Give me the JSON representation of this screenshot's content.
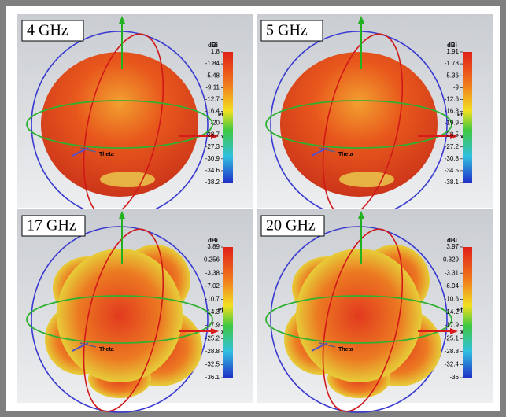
{
  "panels": [
    {
      "label": "4 GHz",
      "unit": "dBi",
      "scale": [
        "1.8",
        "-1.84",
        "-5.48",
        "-9.11",
        "-12.7",
        "-16.4",
        "-20",
        "-23.7",
        "-27.3",
        "-30.9",
        "-34.6",
        "-38.2"
      ],
      "axes": {
        "phi": "Phi",
        "theta": "Theta",
        "x": "x"
      }
    },
    {
      "label": "5 GHz",
      "unit": "dBi",
      "scale": [
        "1.91",
        "-1.73",
        "-5.36",
        "-9",
        "-12.6",
        "-16.3",
        "-19.9",
        "-23.5",
        "-27.2",
        "-30.8",
        "-34.5",
        "-38.1"
      ],
      "axes": {
        "phi": "Phi",
        "theta": "Theta",
        "x": "x"
      }
    },
    {
      "label": "17 GHz",
      "unit": "dBi",
      "scale": [
        "3.89",
        "0.256",
        "-3.38",
        "-7.02",
        "-10.7",
        "-14.3",
        "-17.9",
        "-25.2",
        "-28.8",
        "-32.5",
        "-36.1"
      ],
      "axes": {
        "phi": "Phi",
        "theta": "Theta",
        "x": "x"
      }
    },
    {
      "label": "20 GHz",
      "unit": "dBi",
      "scale": [
        "3.97",
        "0.329",
        "-3.31",
        "-6.94",
        "-10.6",
        "-14.2",
        "-17.9",
        "-25.1",
        "-28.8",
        "-32.4",
        "-36"
      ],
      "axes": {
        "phi": "Phi",
        "theta": "Theta",
        "x": "x"
      }
    }
  ]
}
